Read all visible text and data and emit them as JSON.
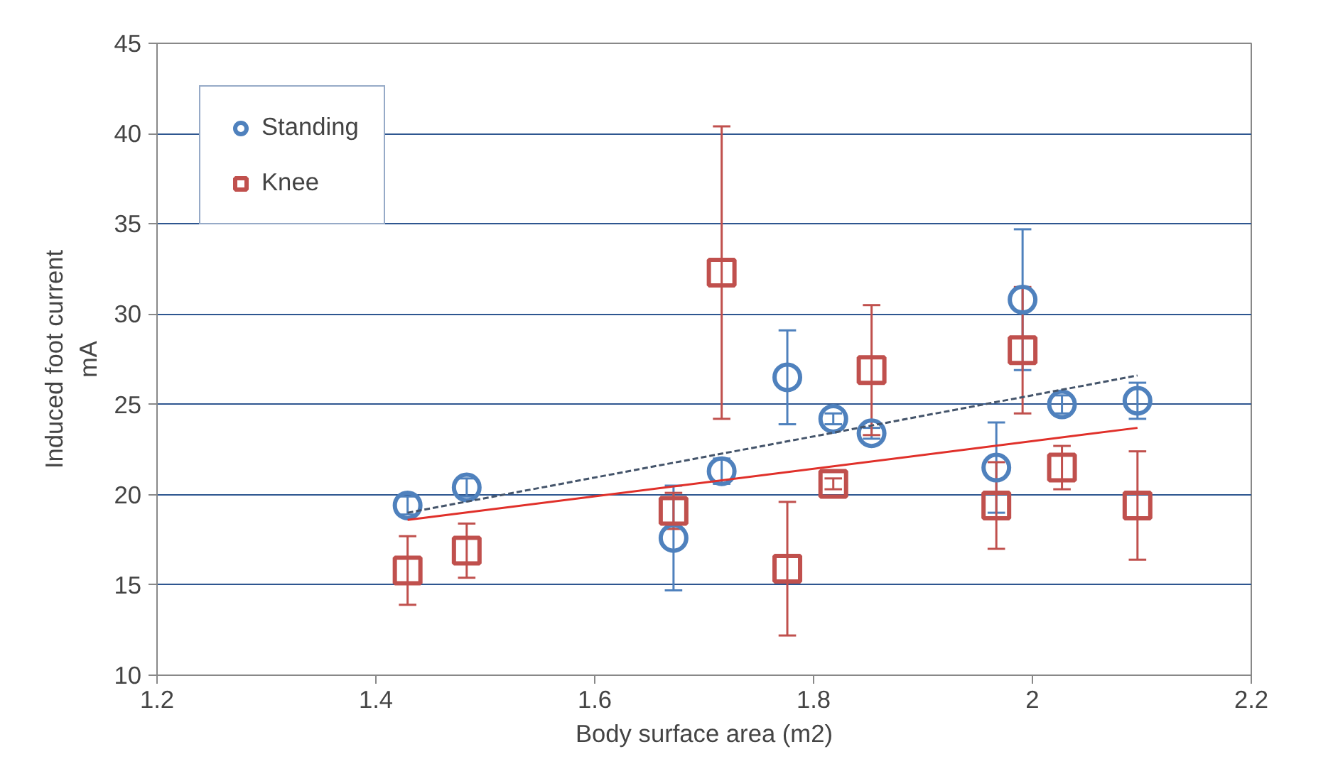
{
  "chart_data": {
    "type": "scatter",
    "xlabel": "Body surface area (m2)",
    "ylabel": "Induced foot current\nmA",
    "xlim": [
      1.2,
      2.2
    ],
    "xticks": [
      1.2,
      1.4,
      1.6,
      1.8,
      2,
      2.2
    ],
    "ylim": [
      10,
      45
    ],
    "yticks": [
      10,
      15,
      20,
      25,
      30,
      35,
      40,
      45
    ],
    "grid": "y",
    "legend": "top left",
    "series": [
      {
        "name": "Standing",
        "color": "#4f81bd",
        "marker": "circle",
        "x": [
          1.429,
          1.483,
          1.672,
          1.716,
          1.776,
          1.818,
          1.853,
          1.967,
          1.991,
          2.027,
          2.096
        ],
        "values": [
          19.4,
          20.4,
          17.6,
          21.3,
          26.5,
          24.2,
          23.4,
          21.5,
          30.8,
          25.0,
          25.2
        ],
        "errors": [
          0.5,
          0.5,
          2.9,
          0.7,
          2.6,
          0.3,
          0.3,
          2.5,
          3.9,
          0.5,
          1.0
        ]
      },
      {
        "name": "Knee",
        "color": "#c0504d",
        "marker": "square",
        "x": [
          1.429,
          1.483,
          1.672,
          1.716,
          1.776,
          1.818,
          1.853,
          1.967,
          1.991,
          2.027,
          2.096
        ],
        "values": [
          15.8,
          16.9,
          19.1,
          32.3,
          15.9,
          20.6,
          26.9,
          19.4,
          28.0,
          21.5,
          19.4
        ],
        "errors": [
          1.9,
          1.5,
          1.0,
          8.1,
          3.7,
          0.3,
          3.6,
          2.4,
          3.5,
          1.2,
          3.0
        ]
      },
      {
        "type": "line",
        "color": "#44546a",
        "line_style": "dashed",
        "x": [
          1.429,
          2.096
        ],
        "values": [
          19.0,
          26.6
        ]
      },
      {
        "type": "line",
        "color": "#e0302a",
        "line_style": "solid",
        "x": [
          1.429,
          2.096
        ],
        "values": [
          18.6,
          23.7
        ]
      }
    ]
  }
}
